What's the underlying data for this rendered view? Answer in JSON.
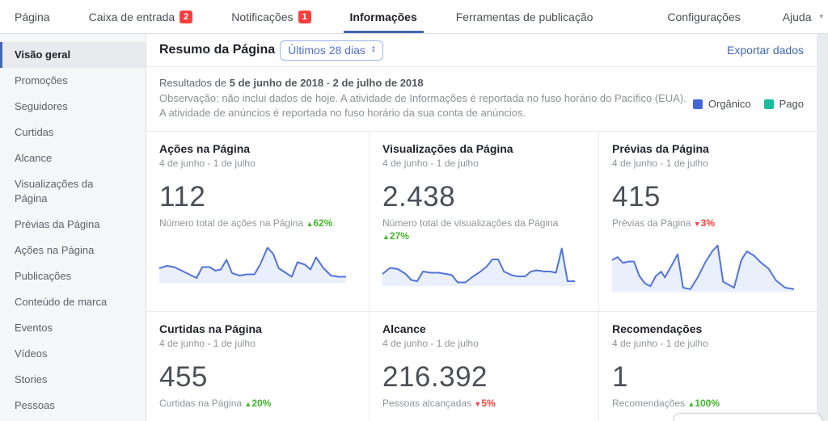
{
  "topbar": {
    "tabs": [
      {
        "label": "Página"
      },
      {
        "label": "Caixa de entrada",
        "badge": "2"
      },
      {
        "label": "Notificações",
        "badge": "1"
      },
      {
        "label": "Informações",
        "active": true
      },
      {
        "label": "Ferramentas de publicação"
      }
    ],
    "settings_label": "Configurações",
    "help_label": "Ajuda",
    "help_caret": "▾"
  },
  "sidebar": {
    "items": [
      {
        "label": "Visão geral",
        "active": true
      },
      {
        "label": "Promoções"
      },
      {
        "label": "Seguidores"
      },
      {
        "label": "Curtidas"
      },
      {
        "label": "Alcance"
      },
      {
        "label": "Visualizações da Página"
      },
      {
        "label": "Prévias da Página"
      },
      {
        "label": "Ações na Página"
      },
      {
        "label": "Publicações"
      },
      {
        "label": "Conteúdo de marca"
      },
      {
        "label": "Eventos"
      },
      {
        "label": "Vídeos"
      },
      {
        "label": "Stories"
      },
      {
        "label": "Pessoas"
      }
    ]
  },
  "header": {
    "title": "Resumo da Página",
    "range_label": "Últimos 28 dias",
    "export_label": "Exportar dados"
  },
  "note": {
    "prefix": "Resultados de ",
    "date_start": "5 de junho de 2018",
    "separator": " - ",
    "date_end": "2 de julho de 2018",
    "body": "Observação: não inclui dados de hoje. A atividade de Informações é reportada no fuso horário do Pacífico (EUA). A atividade de anúncios é reportada no fuso horário da sua conta de anúncios.",
    "legend": [
      {
        "label": "Orgânico",
        "color": "#4267d6"
      },
      {
        "label": "Pago",
        "color": "#1abc9c"
      }
    ]
  },
  "spark_style": {
    "stroke": "#5274d9",
    "fill": "#e9effb"
  },
  "cards": [
    {
      "title": "Ações na Página",
      "date_range": "4 de junho - 1 de julho",
      "value": "112",
      "desc": "Número total de ações na Página ",
      "trend_arrow": "▲",
      "trend_value": "62%",
      "trend_color": "#42b72a",
      "sparkline": "0,26 4,24 8,25 12,28 16,31 20,34 23,25 27,25 30,28 33,27 36,19 39,30 43,32 47,31 51,31 54,23 58,9 61,14 64,26 68,30 71,33 74,21 78,23 81,27 84,17 88,26 92,32 96,33 100,33"
    },
    {
      "title": "Visualizações da Página",
      "date_range": "4 de junho - 1 de julho",
      "value": "2.438",
      "desc": "Número total de visualizações da Página ",
      "trend_arrow": "▲",
      "trend_value": "27%",
      "trend_color": "#42b72a",
      "sparkline": "0,28 4,23 8,24 12,28 15,33 18,34 21,26 25,27 29,27 33,28 36,29 39,35 43,35 47,30 50,27 54,22 57,16 60,16 63,26 67,29 70,30 74,30 77,26 80,25 84,26 87,26 90,27 93,7 96,34 100,34"
    },
    {
      "title": "Prévias da Página",
      "date_range": "4 de junho - 1 de julho",
      "value": "415",
      "desc": "Prévias da Página ",
      "trend_arrow": "▼",
      "trend_value": "3%",
      "trend_color": "#fa3e3e",
      "sparkline": "0,16 3,14 6,18 9,17 12,17 15,27 18,32 21,34 24,27 27,24 29,28 33,19 36,12 39,35 43,36 47,28 51,18 55,10 58,6 61,31 64,33 67,35 71,16 74,10 78,13 82,18 86,22 90,30 95,35 100,36"
    },
    {
      "title": "Curtidas na Página",
      "date_range": "4 de junho - 1 de julho",
      "value": "455",
      "desc": "Curtidas na Página ",
      "trend_arrow": "▲",
      "trend_value": "20%",
      "trend_color": "#42b72a"
    },
    {
      "title": "Alcance",
      "date_range": "4 de junho - 1 de julho",
      "value": "216.392",
      "desc": "Pessoas alcançadas ",
      "trend_arrow": "▼",
      "trend_value": "5%",
      "trend_color": "#fa3e3e"
    },
    {
      "title": "Recomendações",
      "date_range": "4 de junho - 1 de julho",
      "value": "1",
      "desc": "Recomendações ",
      "trend_arrow": "▲",
      "trend_value": "100%",
      "trend_color": "#42b72a"
    }
  ]
}
